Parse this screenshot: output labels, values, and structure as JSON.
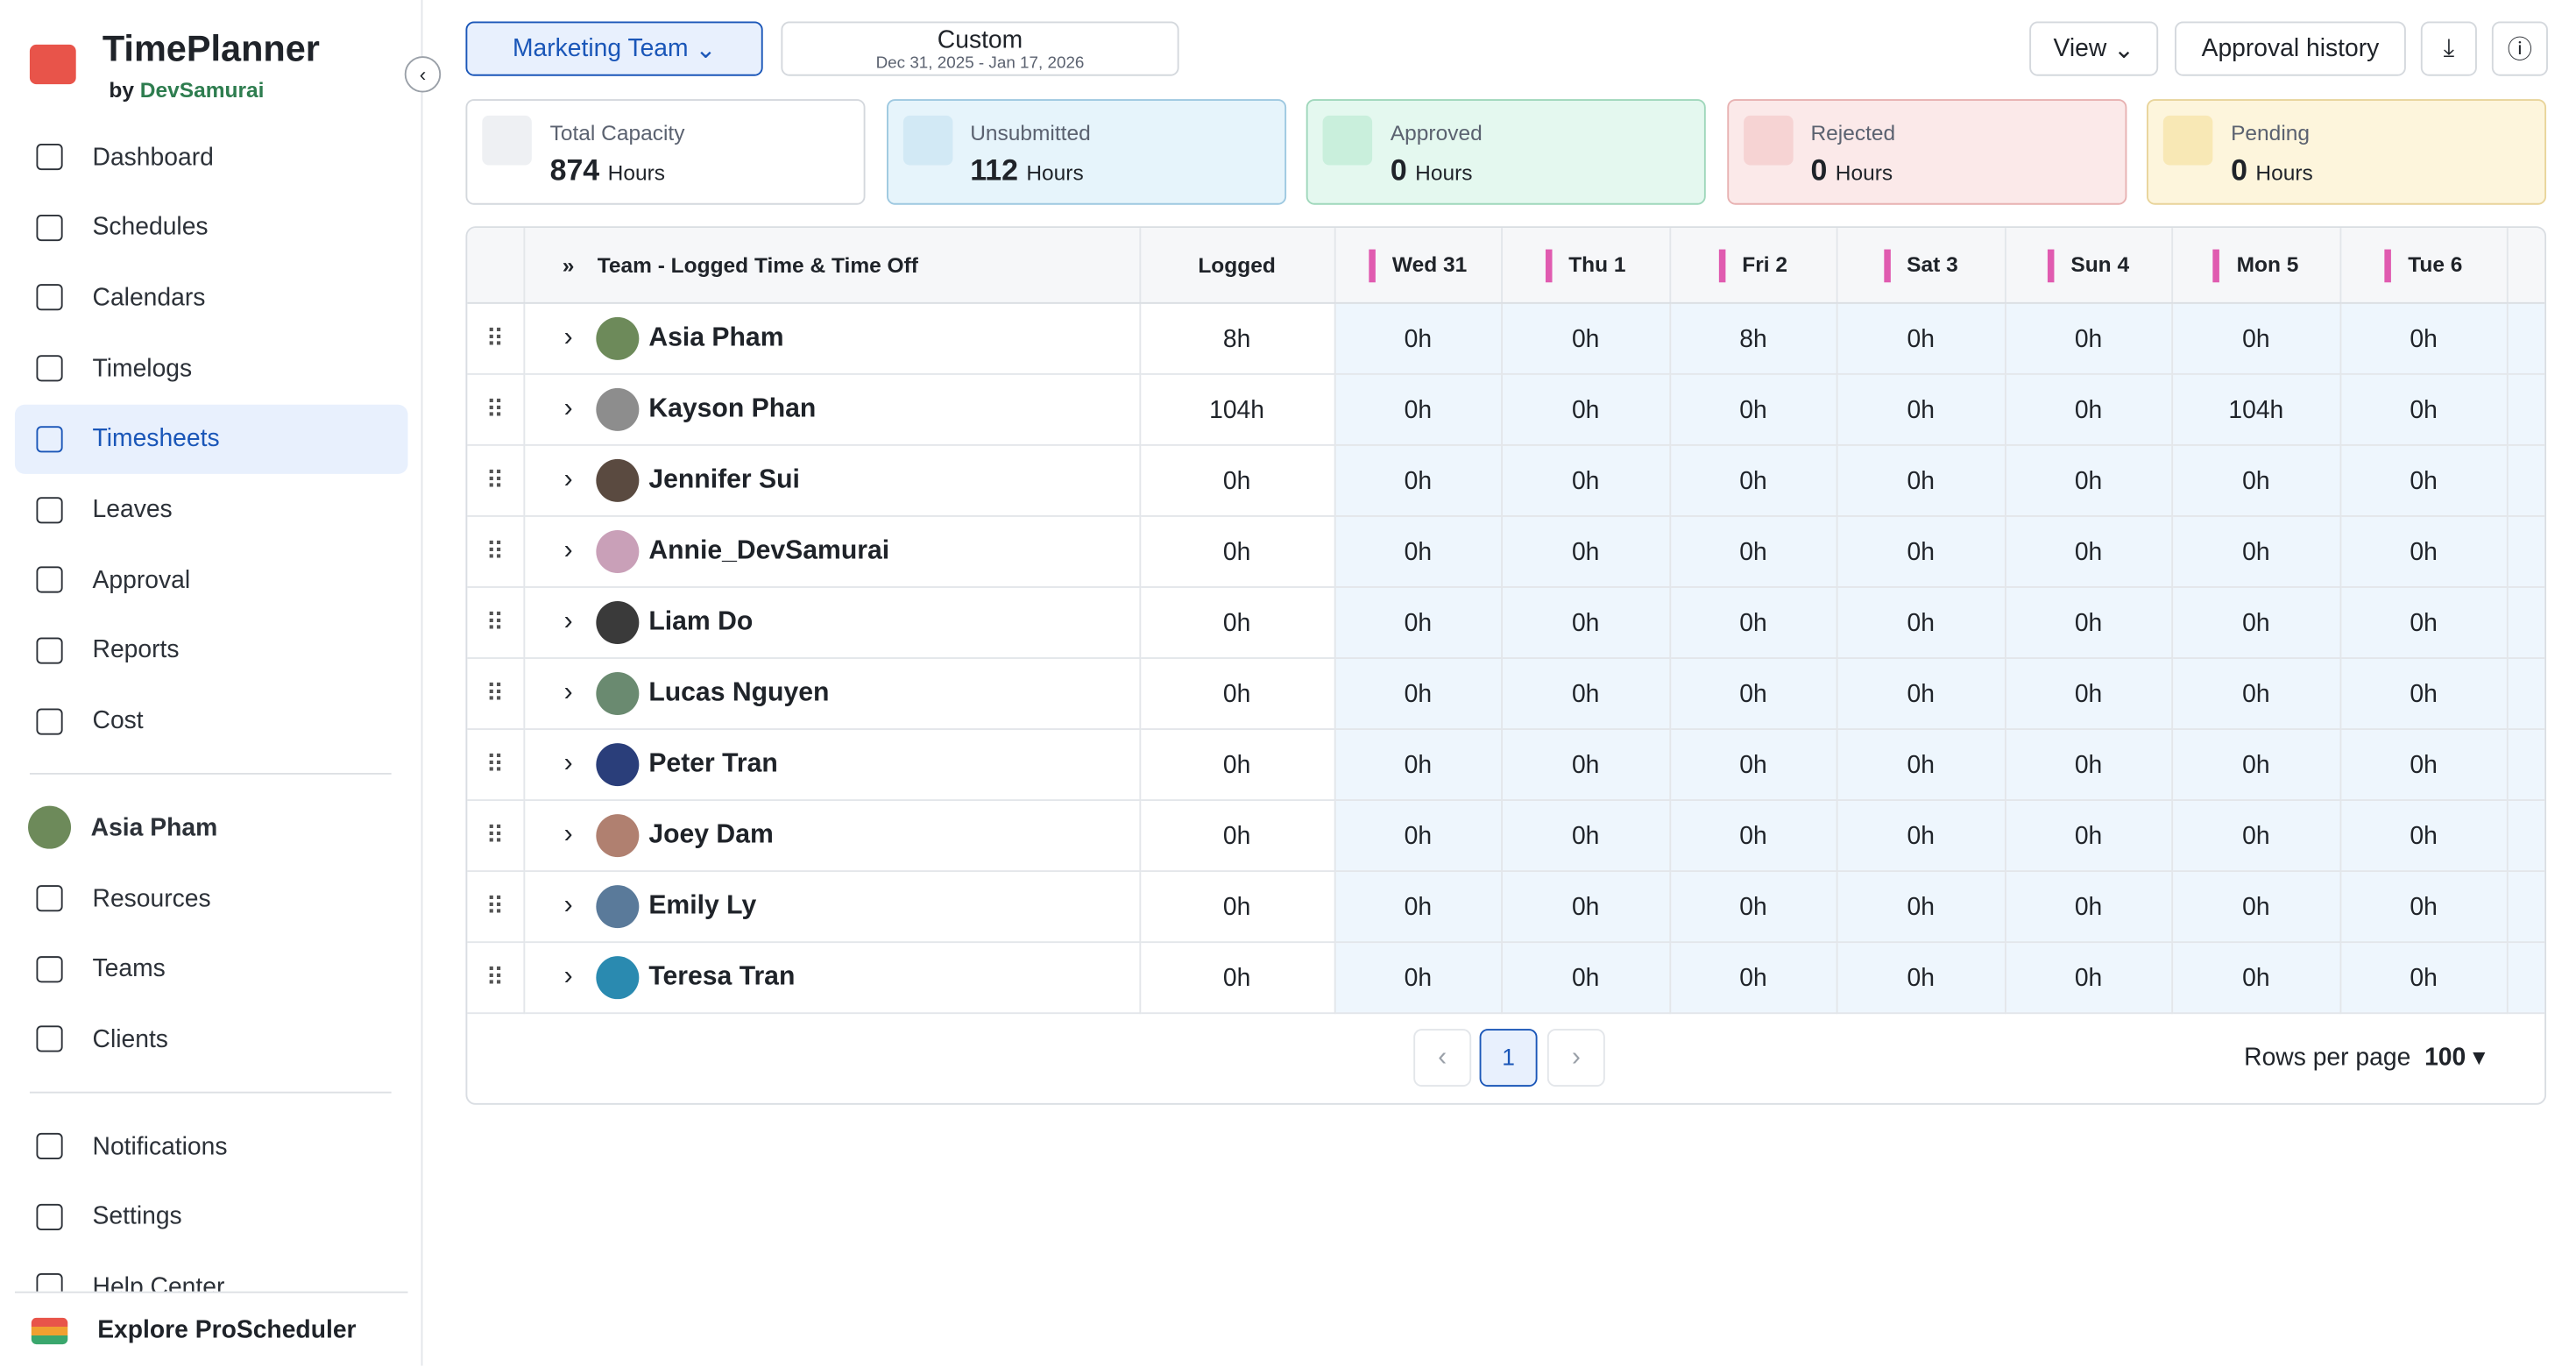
{
  "app": {
    "name": "TimePlanner",
    "by": "by",
    "brand": "DevSamurai"
  },
  "nav": [
    "Dashboard",
    "Schedules",
    "Calendars",
    "Timelogs",
    "Timesheets",
    "Leaves",
    "Approval",
    "Reports",
    "Cost"
  ],
  "user": "Asia Pham",
  "nav2": [
    "Resources",
    "Teams",
    "Clients"
  ],
  "nav3": [
    "Notifications",
    "Settings",
    "Help Center"
  ],
  "explore": "Explore ProScheduler",
  "toolbar": {
    "team": "Marketing Team",
    "range_label": "Custom",
    "range": "Dec 31, 2025 - Jan 17, 2026",
    "view": "View",
    "history": "Approval history"
  },
  "stats": [
    {
      "label": "Total Capacity",
      "value": 874,
      "unit": "Hours"
    },
    {
      "label": "Unsubmitted",
      "value": 112,
      "unit": "Hours"
    },
    {
      "label": "Approved",
      "value": 0,
      "unit": "Hours"
    },
    {
      "label": "Rejected",
      "value": 0,
      "unit": "Hours"
    },
    {
      "label": "Pending",
      "value": 0,
      "unit": "Hours"
    }
  ],
  "table": {
    "header": [
      "Team - Logged Time & Time Off",
      "Logged",
      "Wed 31",
      "Thu 1",
      "Fri 2",
      "Sat 3",
      "Sun 4",
      "Mon 5",
      "Tue 6"
    ],
    "rows": [
      [
        "Asia Pham",
        "8h",
        "0h",
        "0h",
        "8h",
        "0h",
        "0h",
        "0h",
        "0h"
      ],
      [
        "Kayson Phan",
        "104h",
        "0h",
        "0h",
        "0h",
        "0h",
        "0h",
        "104h",
        "0h"
      ],
      [
        "Jennifer Sui",
        "0h",
        "0h",
        "0h",
        "0h",
        "0h",
        "0h",
        "0h",
        "0h"
      ],
      [
        "Annie_DevSamurai",
        "0h",
        "0h",
        "0h",
        "0h",
        "0h",
        "0h",
        "0h",
        "0h"
      ],
      [
        "Liam Do",
        "0h",
        "0h",
        "0h",
        "0h",
        "0h",
        "0h",
        "0h",
        "0h"
      ],
      [
        "Lucas Nguyen",
        "0h",
        "0h",
        "0h",
        "0h",
        "0h",
        "0h",
        "0h",
        "0h"
      ],
      [
        "Peter Tran",
        "0h",
        "0h",
        "0h",
        "0h",
        "0h",
        "0h",
        "0h",
        "0h"
      ],
      [
        "Joey Dam",
        "0h",
        "0h",
        "0h",
        "0h",
        "0h",
        "0h",
        "0h",
        "0h"
      ],
      [
        "Emily Ly",
        "0h",
        "0h",
        "0h",
        "0h",
        "0h",
        "0h",
        "0h",
        "0h"
      ],
      [
        "Teresa Tran",
        "0h",
        "0h",
        "0h",
        "0h",
        "0h",
        "0h",
        "0h",
        "0h"
      ]
    ]
  },
  "pagination": {
    "page": "1",
    "rows_label": "Rows per page",
    "rows": "100"
  }
}
